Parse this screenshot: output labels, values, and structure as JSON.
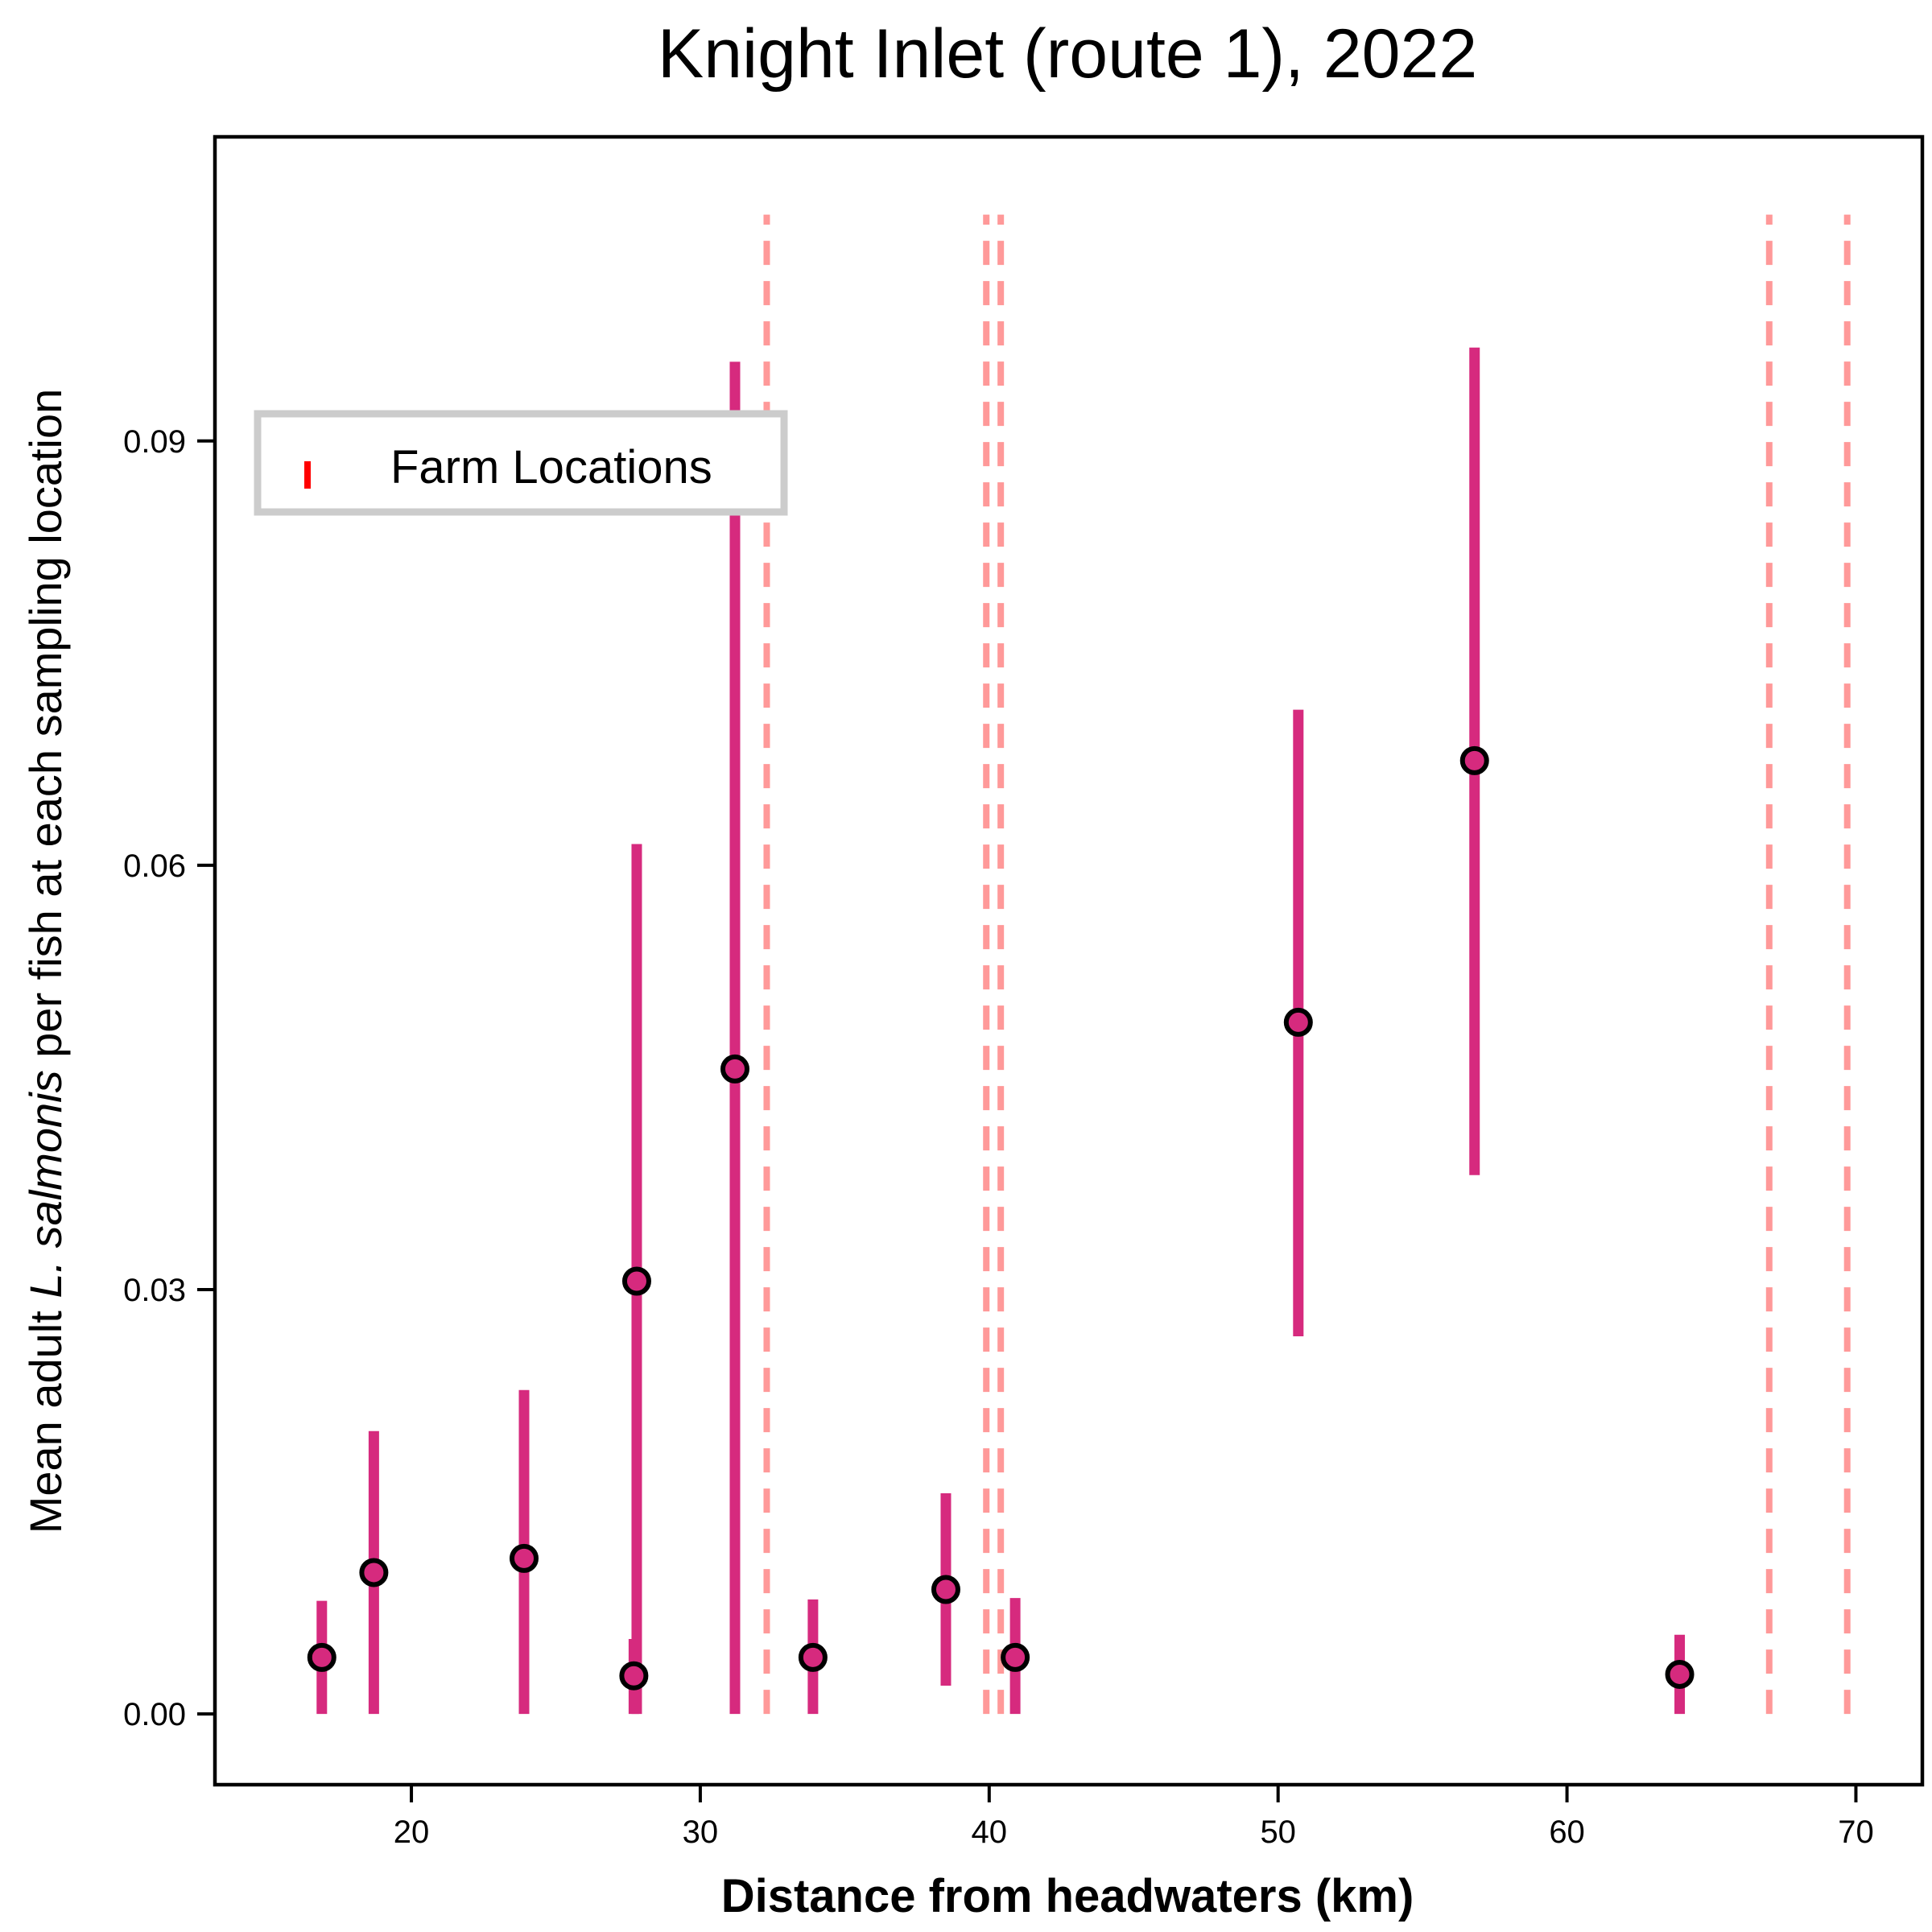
{
  "chart_data": {
    "type": "scatter",
    "title": "Knight Inlet (route 1), 2022",
    "xlabel": "Distance from headwaters (km)",
    "ylabel": {
      "before": "Mean adult ",
      "italic": "L. salmonis",
      "after": " per fish at each sampling location"
    },
    "xlim": [
      13.2,
      72.3
    ],
    "ylim": [
      -0.005,
      0.1115
    ],
    "xticks": [
      20,
      30,
      40,
      50,
      60,
      70
    ],
    "yticks": [
      0.0,
      0.03,
      0.06,
      0.09
    ],
    "ytick_labels": [
      "0.00",
      "0.03",
      "0.06",
      "0.09"
    ],
    "grid": false,
    "legend": {
      "placement": "upper-left",
      "entries": [
        {
          "label": "Farm Locations",
          "color": "#ff0000",
          "marker": "vertical-tick"
        }
      ]
    },
    "series": [
      {
        "color": "#d62a7e",
        "marker": "circle",
        "points": [
          {
            "x": 16.9,
            "y": 0.004,
            "low": 0.0,
            "high": 0.008
          },
          {
            "x": 18.7,
            "y": 0.01,
            "low": 0.0,
            "high": 0.02
          },
          {
            "x": 23.9,
            "y": 0.011,
            "low": 0.0,
            "high": 0.0229
          },
          {
            "x": 27.7,
            "y": 0.0027,
            "low": 0.0,
            "high": 0.0053
          },
          {
            "x": 27.8,
            "y": 0.0306,
            "low": 0.0,
            "high": 0.0615
          },
          {
            "x": 31.2,
            "y": 0.0456,
            "low": 0.0,
            "high": 0.0956
          },
          {
            "x": 33.9,
            "y": 0.004,
            "low": 0.0,
            "high": 0.0081
          },
          {
            "x": 38.5,
            "y": 0.0088,
            "low": 0.002,
            "high": 0.0156
          },
          {
            "x": 40.9,
            "y": 0.004,
            "low": 0.0,
            "high": 0.0082
          },
          {
            "x": 50.7,
            "y": 0.0489,
            "low": 0.0267,
            "high": 0.071
          },
          {
            "x": 56.8,
            "y": 0.0674,
            "low": 0.0381,
            "high": 0.0966
          },
          {
            "x": 63.9,
            "y": 0.0028,
            "low": 0.0,
            "high": 0.0056
          }
        ]
      }
    ],
    "farm_lines": {
      "color": "#ff9999",
      "style": "dashed",
      "x": [
        32.3,
        39.9,
        40.4,
        67.0,
        69.7
      ],
      "y_range": [
        0.0,
        0.106
      ]
    }
  }
}
